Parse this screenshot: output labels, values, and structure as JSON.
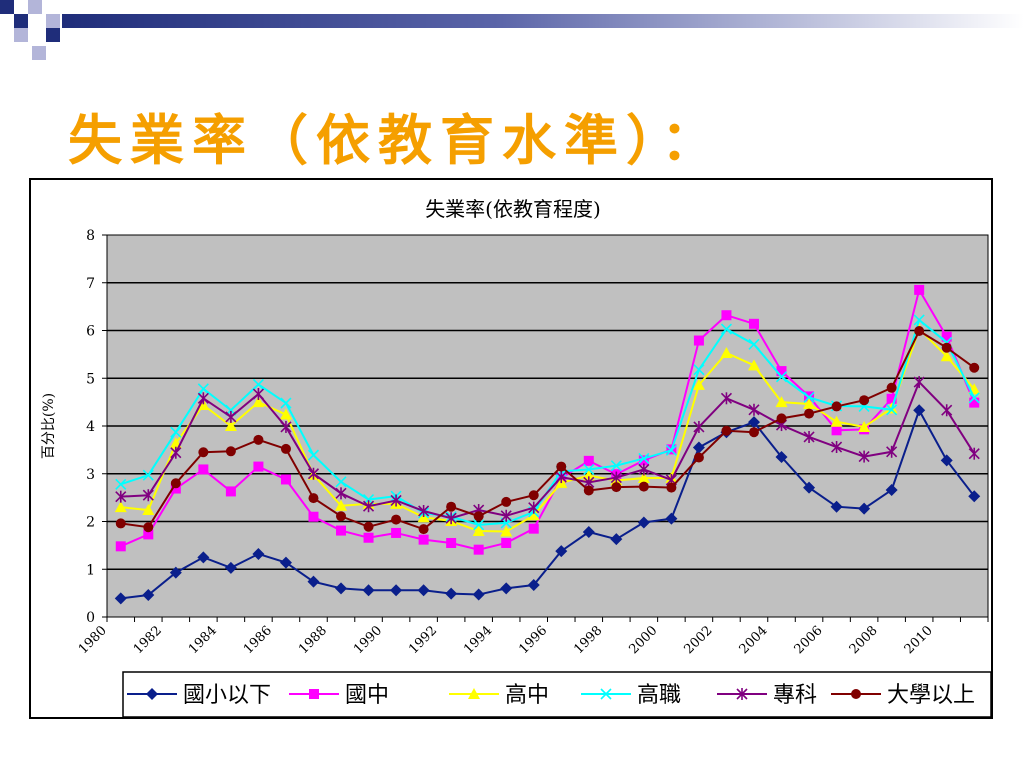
{
  "slide": {
    "title": "失業率（依教育水準）："
  },
  "theme": {
    "title_color": "#F59F00",
    "plot_background": "#C0C0C0",
    "deco_navy": "#1F2D7A",
    "deco_lavender": "#B3B5D9"
  },
  "chart_data": {
    "type": "line",
    "title": "失業率(依教育程度)",
    "xlabel": "",
    "ylabel": "百分比(%)",
    "ylim": [
      0,
      8
    ],
    "yticks": [
      "0",
      "1",
      "2",
      "3",
      "4",
      "5",
      "6",
      "7",
      "8"
    ],
    "xlim": [
      1980,
      2012
    ],
    "xticks": [
      "1980",
      "1982",
      "1984",
      "1986",
      "1988",
      "1990",
      "1992",
      "1994",
      "1996",
      "1998",
      "2000",
      "2002",
      "2004",
      "2006",
      "2008",
      "2010"
    ],
    "grid": true,
    "legend_position": "bottom",
    "x": [
      1980.5,
      1981.5,
      1982.5,
      1983.5,
      1984.5,
      1985.5,
      1986.5,
      1987.5,
      1988.5,
      1989.5,
      1990.5,
      1991.5,
      1992.5,
      1993.5,
      1994.5,
      1995.5,
      1996.5,
      1997.5,
      1998.5,
      1999.5,
      2000.5,
      2001.5,
      2002.5,
      2003.5,
      2004.5,
      2005.5,
      2006.5,
      2007.5,
      2008.5,
      2009.5,
      2010.5,
      2011.5
    ],
    "series": [
      {
        "name": "國小以下",
        "color": "#0A1F8C",
        "marker": "diamond",
        "values": [
          0.39,
          0.46,
          0.93,
          1.25,
          1.03,
          1.32,
          1.14,
          0.74,
          0.6,
          0.56,
          0.56,
          0.56,
          0.49,
          0.47,
          0.6,
          0.67,
          1.38,
          1.78,
          1.63,
          1.98,
          2.06,
          3.55,
          3.87,
          4.08,
          3.35,
          2.71,
          2.31,
          2.27,
          2.66,
          4.33,
          3.28,
          2.53
        ]
      },
      {
        "name": "國中",
        "color": "#FF00FF",
        "marker": "square",
        "values": [
          1.48,
          1.73,
          2.69,
          3.09,
          2.63,
          3.15,
          2.88,
          2.1,
          1.81,
          1.66,
          1.76,
          1.62,
          1.55,
          1.41,
          1.55,
          1.85,
          2.91,
          3.27,
          2.99,
          3.28,
          3.51,
          5.79,
          6.32,
          6.14,
          5.15,
          4.62,
          3.91,
          3.93,
          4.57,
          6.85,
          5.87,
          4.49
        ]
      },
      {
        "name": "高中",
        "color": "#FFFF00",
        "marker": "triangle",
        "values": [
          2.3,
          2.24,
          3.64,
          4.44,
          4.0,
          4.5,
          4.24,
          2.98,
          2.33,
          2.37,
          2.37,
          2.09,
          2.01,
          1.8,
          1.79,
          2.13,
          2.81,
          2.96,
          2.86,
          2.91,
          2.91,
          4.86,
          5.53,
          5.27,
          4.5,
          4.46,
          4.09,
          3.98,
          4.37,
          6.03,
          5.46,
          4.77
        ]
      },
      {
        "name": "高職",
        "color": "#00FFFF",
        "marker": "x",
        "values": [
          2.78,
          2.97,
          3.87,
          4.78,
          4.33,
          4.87,
          4.48,
          3.39,
          2.83,
          2.46,
          2.53,
          2.18,
          2.1,
          1.93,
          1.97,
          2.2,
          3.05,
          3.09,
          3.17,
          3.32,
          3.49,
          5.18,
          6.03,
          5.71,
          5.03,
          4.6,
          4.42,
          4.41,
          4.34,
          6.22,
          5.75,
          4.59
        ]
      },
      {
        "name": "專科",
        "color": "#800080",
        "marker": "star",
        "values": [
          2.52,
          2.55,
          3.44,
          4.58,
          4.19,
          4.67,
          3.98,
          3.0,
          2.59,
          2.32,
          2.44,
          2.22,
          2.07,
          2.24,
          2.12,
          2.29,
          2.93,
          2.82,
          2.92,
          3.09,
          2.87,
          3.98,
          4.58,
          4.34,
          4.02,
          3.77,
          3.56,
          3.36,
          3.46,
          4.92,
          4.33,
          3.42
        ]
      },
      {
        "name": "大學以上",
        "color": "#800000",
        "marker": "circle",
        "values": [
          1.96,
          1.88,
          2.8,
          3.45,
          3.47,
          3.71,
          3.52,
          2.49,
          2.11,
          1.89,
          2.04,
          1.84,
          2.31,
          2.11,
          2.41,
          2.55,
          3.15,
          2.65,
          2.72,
          2.73,
          2.71,
          3.34,
          3.9,
          3.87,
          4.16,
          4.26,
          4.41,
          4.54,
          4.8,
          5.99,
          5.64,
          5.22
        ]
      }
    ]
  }
}
